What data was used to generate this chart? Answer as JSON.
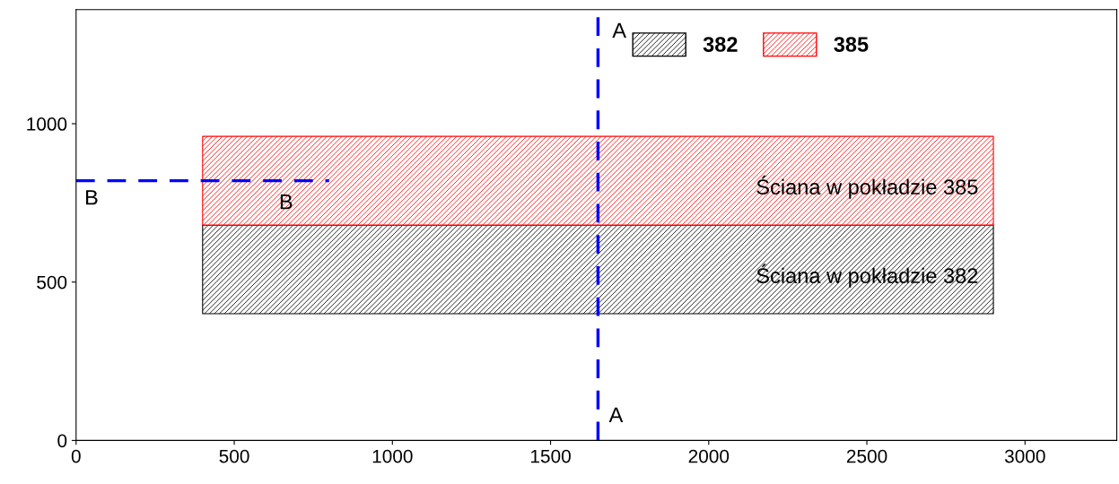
{
  "chart_data": {
    "type": "line",
    "xlim": [
      0,
      3290
    ],
    "ylim": [
      0,
      1360
    ],
    "xticks": [
      0,
      500,
      1000,
      1500,
      2000,
      2500,
      3000
    ],
    "yticks": [
      0,
      500,
      1000
    ],
    "grid": false,
    "legend": "top right",
    "series": [
      {
        "name": "382",
        "color": "#000000",
        "x": [
          400,
          2900
        ],
        "values": [
          null,
          null
        ],
        "lower": [
          400,
          400
        ],
        "upper": [
          680,
          680
        ]
      },
      {
        "name": "385",
        "color": "#ff0000",
        "x": [
          400,
          2900
        ],
        "values": [
          null,
          null
        ],
        "lower": [
          680,
          680
        ],
        "upper": [
          960,
          960
        ]
      },
      {
        "color": "#0000ff",
        "line_style": "dashed",
        "x": [
          0,
          800
        ],
        "values": [
          820,
          820
        ]
      }
    ],
    "ref_lines": [
      {
        "axis": "x",
        "value": 1650,
        "label": "A",
        "color": "#0000ff",
        "line_style": "dashed"
      }
    ],
    "annotations": [
      {
        "text": "Ściana w pokładzie 385",
        "x": 2900,
        "y": 800
      },
      {
        "text": "Ściana w pokładzie 382",
        "x": 2900,
        "y": 520
      },
      "A",
      "B",
      "B"
    ]
  }
}
